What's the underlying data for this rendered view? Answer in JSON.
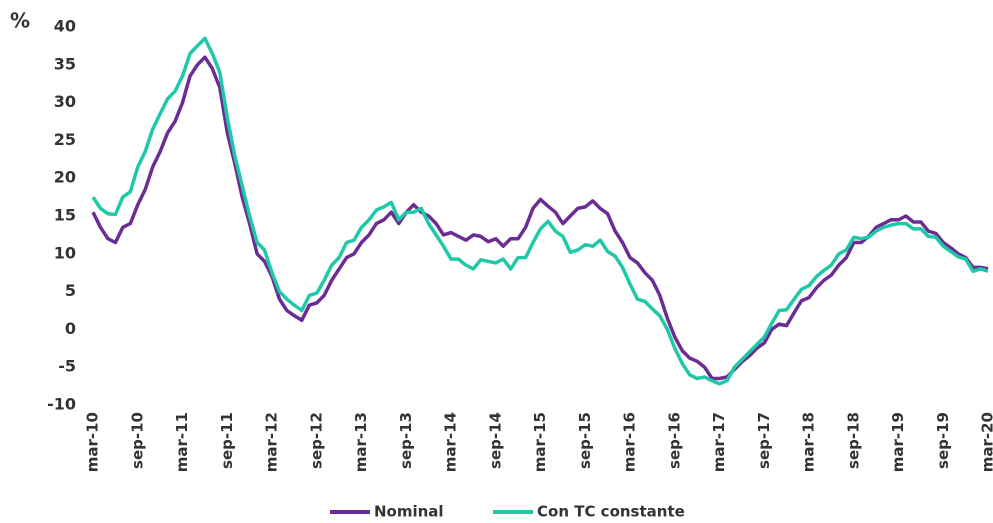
{
  "chart_data": {
    "type": "line",
    "y_label": "%",
    "categories": [
      "mar-10",
      null,
      null,
      null,
      null,
      null,
      "sep-10",
      null,
      null,
      null,
      null,
      null,
      "mar-11",
      null,
      null,
      null,
      null,
      null,
      "sep-11",
      null,
      null,
      null,
      null,
      null,
      "mar-12",
      null,
      null,
      null,
      null,
      null,
      "sep-12",
      null,
      null,
      null,
      null,
      null,
      "mar-13",
      null,
      null,
      null,
      null,
      null,
      "sep-13",
      null,
      null,
      null,
      null,
      null,
      "mar-14",
      null,
      null,
      null,
      null,
      null,
      "sep-14",
      null,
      null,
      null,
      null,
      null,
      "mar-15",
      null,
      null,
      null,
      null,
      null,
      "sep-15",
      null,
      null,
      null,
      null,
      null,
      "mar-16",
      null,
      null,
      null,
      null,
      null,
      "sep-16",
      null,
      null,
      null,
      null,
      null,
      "mar-17",
      null,
      null,
      null,
      null,
      null,
      "sep-17",
      null,
      null,
      null,
      null,
      null,
      "mar-18",
      null,
      null,
      null,
      null,
      null,
      "sep-18",
      null,
      null,
      null,
      null,
      null,
      "mar-19",
      null,
      null,
      null,
      null,
      null,
      "sep-19",
      null,
      null,
      null,
      null,
      null,
      "mar-20"
    ],
    "series": [
      {
        "name": "Nominal",
        "color": "#6b2d94",
        "values": [
          15.5,
          13.5,
          12,
          11.5,
          13.5,
          14,
          16.5,
          18.5,
          21.5,
          23.5,
          26,
          27.5,
          30,
          33.5,
          35,
          36,
          34.5,
          32,
          26,
          22,
          17.5,
          14,
          10,
          9,
          7,
          4,
          2.5,
          1.8,
          1.2,
          3.2,
          3.5,
          4.5,
          6.5,
          8,
          9.5,
          10,
          11.5,
          12.5,
          14,
          14.5,
          15.5,
          14,
          15.5,
          16.5,
          15.5,
          15,
          14,
          12.5,
          12.8,
          12.3,
          11.8,
          12.5,
          12.3,
          11.6,
          12,
          11,
          12,
          12,
          13.5,
          16,
          17.2,
          16.3,
          15.5,
          14,
          15,
          16,
          16.2,
          17,
          16,
          15.3,
          13,
          11.5,
          9.5,
          8.8,
          7.5,
          6.5,
          4.5,
          1.5,
          -1,
          -2.8,
          -3.8,
          -4.2,
          -5,
          -6.5,
          -6.5,
          -6.3,
          -5.3,
          -4.3,
          -3.5,
          -2.5,
          -1.8,
          0,
          0.7,
          0.5,
          2.2,
          3.8,
          4.2,
          5.5,
          6.5,
          7.2,
          8.5,
          9.5,
          11.5,
          11.5,
          12.3,
          13.5,
          14,
          14.5,
          14.5,
          15,
          14.2,
          14.2,
          13,
          12.7,
          11.5,
          10.8,
          10,
          9.5,
          8.2,
          8.2,
          8
        ]
      },
      {
        "name": "Con TC constante",
        "color": "#1fc8a6",
        "values": [
          17.5,
          16,
          15.3,
          15.2,
          17.5,
          18.2,
          21.5,
          23.5,
          26.5,
          28.5,
          30.5,
          31.5,
          33.5,
          36.5,
          37.5,
          38.5,
          36.5,
          34,
          28,
          23,
          19,
          15,
          11.5,
          10.5,
          7.5,
          5,
          4,
          3.2,
          2.5,
          4.5,
          4.8,
          6.5,
          8.5,
          9.5,
          11.5,
          11.8,
          13.5,
          14.5,
          15.8,
          16.2,
          16.8,
          14.5,
          15.5,
          15.5,
          16,
          14,
          12.5,
          11,
          9.3,
          9.3,
          8.5,
          8,
          9.2,
          9,
          8.8,
          9.3,
          8,
          9.5,
          9.5,
          11.5,
          13.3,
          14.3,
          13,
          12.3,
          10.2,
          10.5,
          11.2,
          11,
          11.8,
          10.3,
          9.7,
          8.2,
          6,
          4,
          3.7,
          2.7,
          1.8,
          0,
          -2.5,
          -4.5,
          -6,
          -6.5,
          -6.3,
          -6.8,
          -7.2,
          -6.8,
          -5,
          -4,
          -3,
          -2,
          -1,
          0.8,
          2.5,
          2.6,
          4,
          5.3,
          5.8,
          7,
          7.8,
          8.5,
          10,
          10.5,
          12.2,
          12,
          12.2,
          13,
          13.5,
          13.8,
          14,
          14,
          13.3,
          13.3,
          12.3,
          12.2,
          11,
          10.3,
          9.6,
          9.3,
          7.7,
          8,
          7.7
        ]
      }
    ],
    "ylim": [
      -10,
      40
    ],
    "yticks": [
      -10,
      -5,
      0,
      5,
      10,
      15,
      20,
      25,
      30,
      35,
      40
    ],
    "grid": false,
    "legend": "bottom"
  }
}
